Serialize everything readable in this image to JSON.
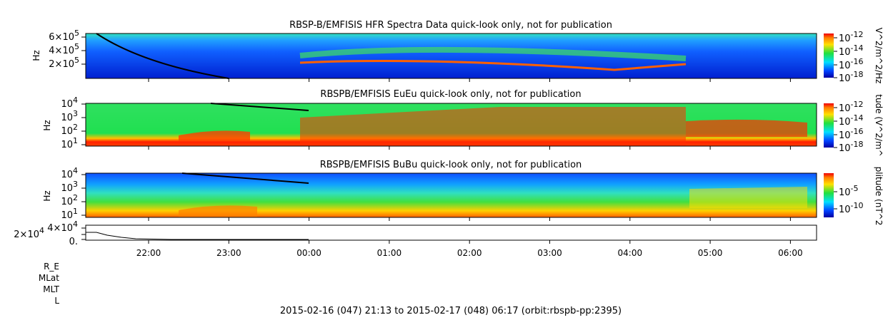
{
  "chart_data": {
    "type": "heatmap",
    "footer": "2015-02-16 (047) 21:13 to 2015-02-17 (048) 06:17 (orbit:rbspb-pp:2395)",
    "x_ticks": [
      "22:00",
      "23:00",
      "00:00",
      "01:00",
      "02:00",
      "03:00",
      "04:00",
      "05:00",
      "06:00"
    ],
    "x_range": [
      "21:13",
      "06:17"
    ],
    "ephemeris_labels": [
      "R_E",
      "MLat",
      "MLT",
      "L"
    ],
    "panels": [
      {
        "title": "RBSP-B/EMFISIS  HFR Spectra Data quick-look only, not for publication",
        "ylabel": "Hz",
        "yticks": [
          {
            "base": "6×10",
            "exp": "5"
          },
          {
            "base": "4×10",
            "exp": "5"
          },
          {
            "base": "2×10",
            "exp": "5"
          }
        ],
        "colorbar_label": "V^2/m^2/Hz",
        "colorbar_ticks": [
          {
            "base": "10",
            "exp": "-12"
          },
          {
            "base": "10",
            "exp": "-14"
          },
          {
            "base": "10",
            "exp": "-16"
          },
          {
            "base": "10",
            "exp": "-18"
          }
        ]
      },
      {
        "title": "RBSPB/EMFISIS  EuEu quick-look only, not for publication",
        "ylabel": "Hz",
        "yticks": [
          {
            "base": "10",
            "exp": "4"
          },
          {
            "base": "10",
            "exp": "3"
          },
          {
            "base": "10",
            "exp": "2"
          },
          {
            "base": "10",
            "exp": "1"
          }
        ],
        "colorbar_label": "tude (V^2/m^",
        "colorbar_ticks": [
          {
            "base": "10",
            "exp": "-12"
          },
          {
            "base": "10",
            "exp": "-14"
          },
          {
            "base": "10",
            "exp": "-16"
          },
          {
            "base": "10",
            "exp": "-18"
          }
        ]
      },
      {
        "title": "RBSPB/EMFISIS  BuBu quick-look only, not for publication",
        "ylabel": "Hz",
        "yticks": [
          {
            "base": "10",
            "exp": "4"
          },
          {
            "base": "10",
            "exp": "3"
          },
          {
            "base": "10",
            "exp": "2"
          },
          {
            "base": "10",
            "exp": "1"
          }
        ],
        "colorbar_label": "plitude (nT^2",
        "colorbar_ticks": [
          {
            "base": "10",
            "exp": "-5"
          },
          {
            "base": "10",
            "exp": "-10"
          }
        ]
      },
      {
        "title": "",
        "yticks": [
          {
            "base": "4×10",
            "exp": "4"
          },
          {
            "base": "2×10",
            "exp": "4"
          },
          {
            "base": "0.",
            "exp": ""
          }
        ]
      }
    ]
  }
}
